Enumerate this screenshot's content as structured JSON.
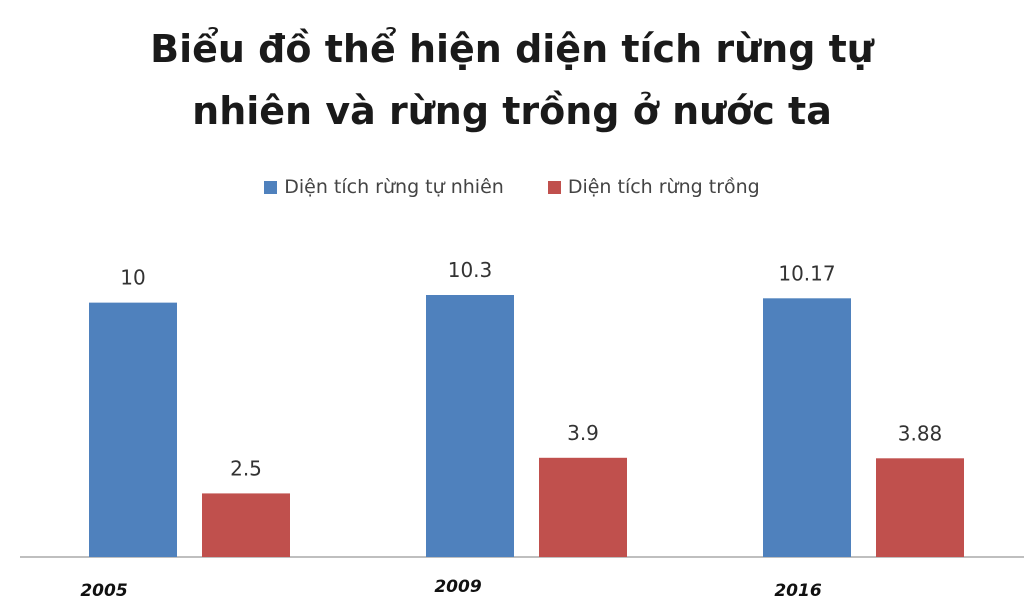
{
  "chart_data": {
    "type": "bar",
    "title_lines": [
      "Biểu đồ thể hiện diện tích rừng tự",
      "nhiên và rừng trồng ở nước ta"
    ],
    "title": "Biểu đồ thể hiện diện tích rừng tự nhiên và rừng trồng ở nước ta",
    "xlabel": "",
    "ylabel": "",
    "categories": [
      "2005",
      "2009",
      "2016"
    ],
    "series": [
      {
        "name": "Diện tích rừng tự nhiên",
        "color": "#4f81bd",
        "values": [
          10,
          10.3,
          10.17
        ],
        "labels": [
          "10",
          "10.3",
          "10.17"
        ]
      },
      {
        "name": "Diện tích rừng trồng",
        "color": "#c0504d",
        "values": [
          2.5,
          3.9,
          3.88
        ],
        "labels": [
          "2.5",
          "3.9",
          "3.88"
        ]
      }
    ],
    "ylim": [
      0,
      10.3
    ],
    "grid": false,
    "legend_position": "top-center",
    "data_labels": true
  }
}
